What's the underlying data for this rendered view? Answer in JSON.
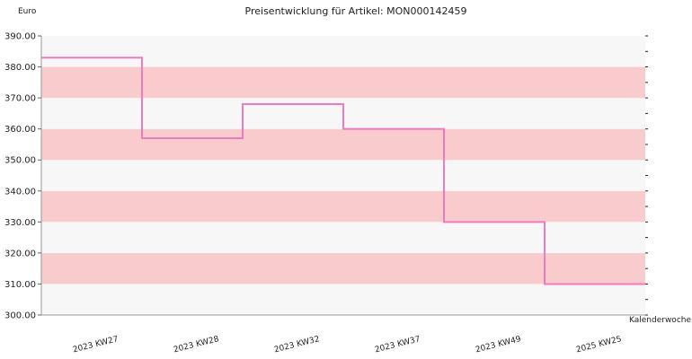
{
  "chart_data": {
    "type": "line",
    "step": true,
    "title": "Preisentwicklung für Artikel: MON000142459",
    "ylabel": "Euro",
    "xlabel": "Kalenderwoche",
    "ylim": [
      300,
      390
    ],
    "yticks": [
      "300.00",
      "310.00",
      "320.00",
      "330.00",
      "340.00",
      "350.00",
      "360.00",
      "370.00",
      "380.00",
      "390.00"
    ],
    "categories": [
      "2023 KW27",
      "2023 KW28",
      "2023 KW32",
      "2023 KW37",
      "2023 KW49",
      "2025 KW25"
    ],
    "series": [
      {
        "values": [
          383,
          357,
          368,
          360,
          330,
          310
        ]
      }
    ],
    "grid": true,
    "colors": {
      "line": "#f07ac0",
      "band_alt": "#f8cccc",
      "band_plain": "#f7f7f7",
      "axis": "#999999"
    }
  }
}
